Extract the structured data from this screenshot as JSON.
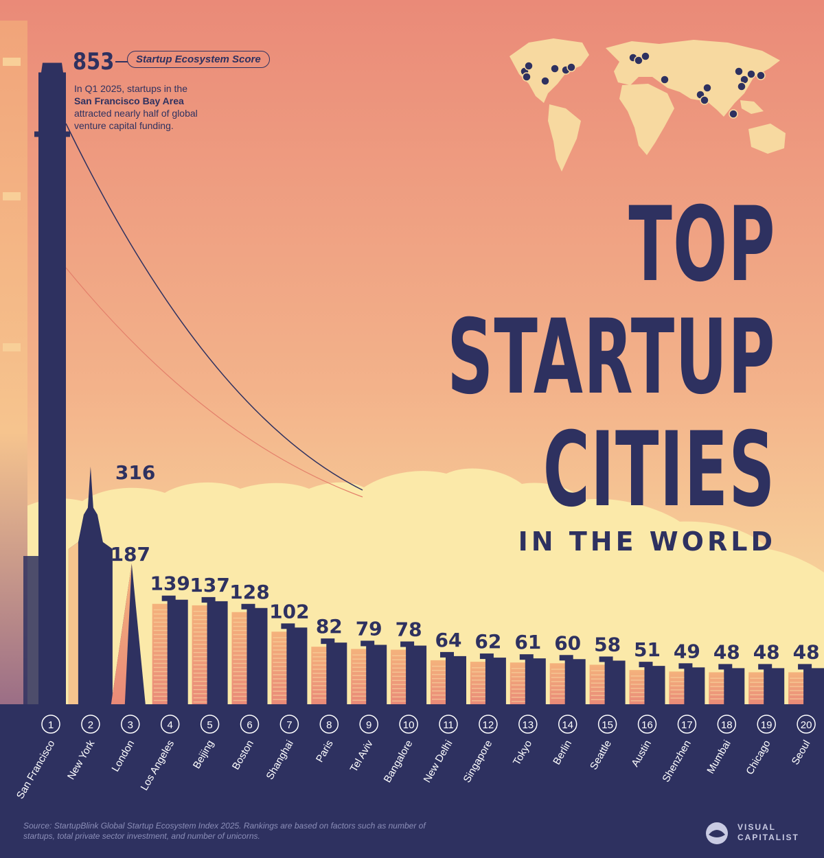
{
  "title": {
    "line1": "TOP",
    "line2": "STARTUP",
    "line3": "CITIES",
    "line4": "IN THE WORLD"
  },
  "score_label": "Startup Ecosystem Score",
  "annotation": {
    "line1": "In Q1 2025, startups in the",
    "line2_bold": "San Francisco Bay Area",
    "line3": "attracted nearly half of global",
    "line4": "venture capital funding."
  },
  "source": "Source: StartupBlink Global Startup Ecosystem Index 2025. Rankings are based on factors such as number of startups, total private sector investment, and number of unicorns.",
  "logo": {
    "line1": "VISUAL",
    "line2": "CAPITALIST"
  },
  "colors": {
    "navy": "#2e3160",
    "sky_top": "#ea8a78",
    "sky_bottom": "#f9e3a3",
    "cloud": "#fbe9a9",
    "map_land": "#f7d9a0"
  },
  "chart_data": {
    "type": "bar",
    "title": "Top Startup Cities in the World",
    "ylabel": "Startup Ecosystem Score",
    "ylim": [
      0,
      900
    ],
    "categories": [
      "San Francisco",
      "New York",
      "London",
      "Los Angeles",
      "Beijing",
      "Boston",
      "Shanghai",
      "Paris",
      "Tel Aviv",
      "Bangalore",
      "New Delhi",
      "Singapore",
      "Tokyo",
      "Berlin",
      "Seattle",
      "Austin",
      "Shenzhen",
      "Mumbai",
      "Chicago",
      "Seoul"
    ],
    "ranks": [
      "1",
      "2",
      "3",
      "4",
      "5",
      "6",
      "7",
      "8",
      "9",
      "10",
      "11",
      "12",
      "13",
      "14",
      "15",
      "16",
      "17",
      "18",
      "19",
      "20"
    ],
    "values": [
      853,
      316,
      187,
      139,
      137,
      128,
      102,
      82,
      79,
      78,
      64,
      62,
      61,
      60,
      58,
      51,
      49,
      48,
      48,
      48
    ]
  }
}
